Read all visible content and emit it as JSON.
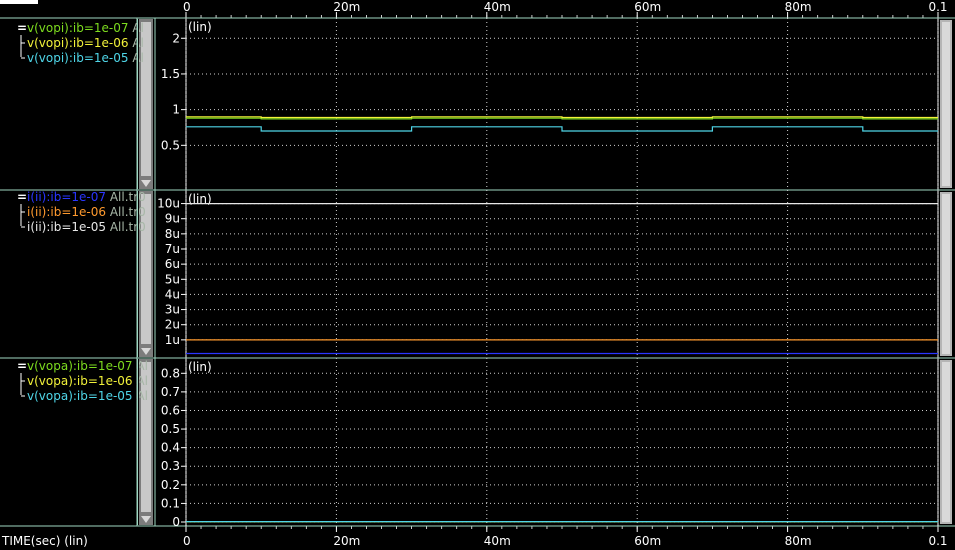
{
  "x_axis_label": "TIME(sec) (lin)",
  "chart_data": [
    {
      "type": "line",
      "scale_label": "(lin)",
      "ylim": [
        0,
        2.2
      ],
      "ytick_values": [
        0.5,
        1,
        1.5,
        2
      ],
      "ytick_labels": [
        "0.5",
        "1",
        "1.5",
        "2"
      ],
      "xlim": [
        0,
        0.1
      ],
      "xtick_values": [
        0,
        0.02,
        0.04,
        0.06,
        0.08,
        0.1
      ],
      "xtick_labels": [
        "0",
        "20m",
        "40m",
        "60m",
        "80m",
        "0.1"
      ],
      "grid": true,
      "legend_group_marker": "=",
      "series": [
        {
          "name": "v(vopi):ib=1e-07",
          "suffix": "Al",
          "color": "#7ddc1f",
          "x": [
            0,
            0.01,
            0.01,
            0.03,
            0.03,
            0.05,
            0.05,
            0.07,
            0.07,
            0.09,
            0.09,
            0.1
          ],
          "y": [
            0.88,
            0.88,
            0.87,
            0.87,
            0.88,
            0.88,
            0.87,
            0.87,
            0.88,
            0.88,
            0.87,
            0.87
          ]
        },
        {
          "name": "v(vopi):ib=1e-06",
          "suffix": "Al",
          "color": "#f2f23a",
          "x": [
            0,
            0.01,
            0.01,
            0.03,
            0.03,
            0.05,
            0.05,
            0.07,
            0.07,
            0.09,
            0.09,
            0.1
          ],
          "y": [
            0.9,
            0.9,
            0.89,
            0.89,
            0.9,
            0.9,
            0.89,
            0.89,
            0.9,
            0.9,
            0.89,
            0.89
          ]
        },
        {
          "name": "v(vopi):ib=1e-05",
          "suffix": "Al",
          "color": "#4fd6e8",
          "x": [
            0,
            0.01,
            0.01,
            0.03,
            0.03,
            0.05,
            0.05,
            0.07,
            0.07,
            0.09,
            0.09,
            0.1
          ],
          "y": [
            0.76,
            0.76,
            0.7,
            0.7,
            0.76,
            0.76,
            0.7,
            0.7,
            0.76,
            0.76,
            0.7,
            0.7
          ]
        }
      ]
    },
    {
      "type": "line",
      "scale_label": "(lin)",
      "ylim": [
        0,
        10.5
      ],
      "ytick_values": [
        1,
        2,
        3,
        4,
        5,
        6,
        7,
        8,
        9,
        10
      ],
      "ytick_labels": [
        "1u",
        "2u",
        "3u",
        "4u",
        "5u",
        "6u",
        "7u",
        "8u",
        "9u",
        "10u"
      ],
      "y_unit": "u",
      "xlim": [
        0,
        0.1
      ],
      "xtick_values": [
        0,
        0.02,
        0.04,
        0.06,
        0.08,
        0.1
      ],
      "grid": true,
      "legend_group_marker": "=",
      "series": [
        {
          "name": "i(ii):ib=1e-07",
          "suffix": "All.tr0",
          "color": "#2a36ff",
          "x": [
            0,
            0.1
          ],
          "y": [
            0.1,
            0.1
          ]
        },
        {
          "name": "i(ii):ib=1e-06",
          "suffix": "All.tr0",
          "color": "#ff9a2e",
          "x": [
            0,
            0.1
          ],
          "y": [
            1,
            1
          ]
        },
        {
          "name": "i(ii):ib=1e-05",
          "suffix": "All.tr0",
          "color": "#e8e8e8",
          "x": [
            0,
            0.1
          ],
          "y": [
            10,
            10
          ]
        }
      ]
    },
    {
      "type": "line",
      "scale_label": "(lin)",
      "ylim": [
        0,
        0.85
      ],
      "ytick_values": [
        0,
        0.1,
        0.2,
        0.3,
        0.4,
        0.5,
        0.6,
        0.7,
        0.8
      ],
      "ytick_labels": [
        "0",
        "0.1",
        "0.2",
        "0.3",
        "0.4",
        "0.5",
        "0.6",
        "0.7",
        "0.8"
      ],
      "xlim": [
        0,
        0.1
      ],
      "xtick_values": [
        0,
        0.02,
        0.04,
        0.06,
        0.08,
        0.1
      ],
      "xtick_labels": [
        "0",
        "20m",
        "40m",
        "60m",
        "80m",
        "0.1"
      ],
      "grid": true,
      "legend_group_marker": "=",
      "series": [
        {
          "name": "v(vopa):ib=1e-07",
          "suffix": "Al",
          "color": "#7ddc1f",
          "x": [
            0,
            0.1
          ],
          "y": [
            0.002,
            0.002
          ]
        },
        {
          "name": "v(vopa):ib=1e-06",
          "suffix": "Al",
          "color": "#f2f23a",
          "x": [
            0,
            0.1
          ],
          "y": [
            0.002,
            0.002
          ]
        },
        {
          "name": "v(vopa):ib=1e-05",
          "suffix": "Al",
          "color": "#4fd6e8",
          "x": [
            0,
            0.1
          ],
          "y": [
            0.002,
            0.002
          ]
        }
      ]
    }
  ]
}
